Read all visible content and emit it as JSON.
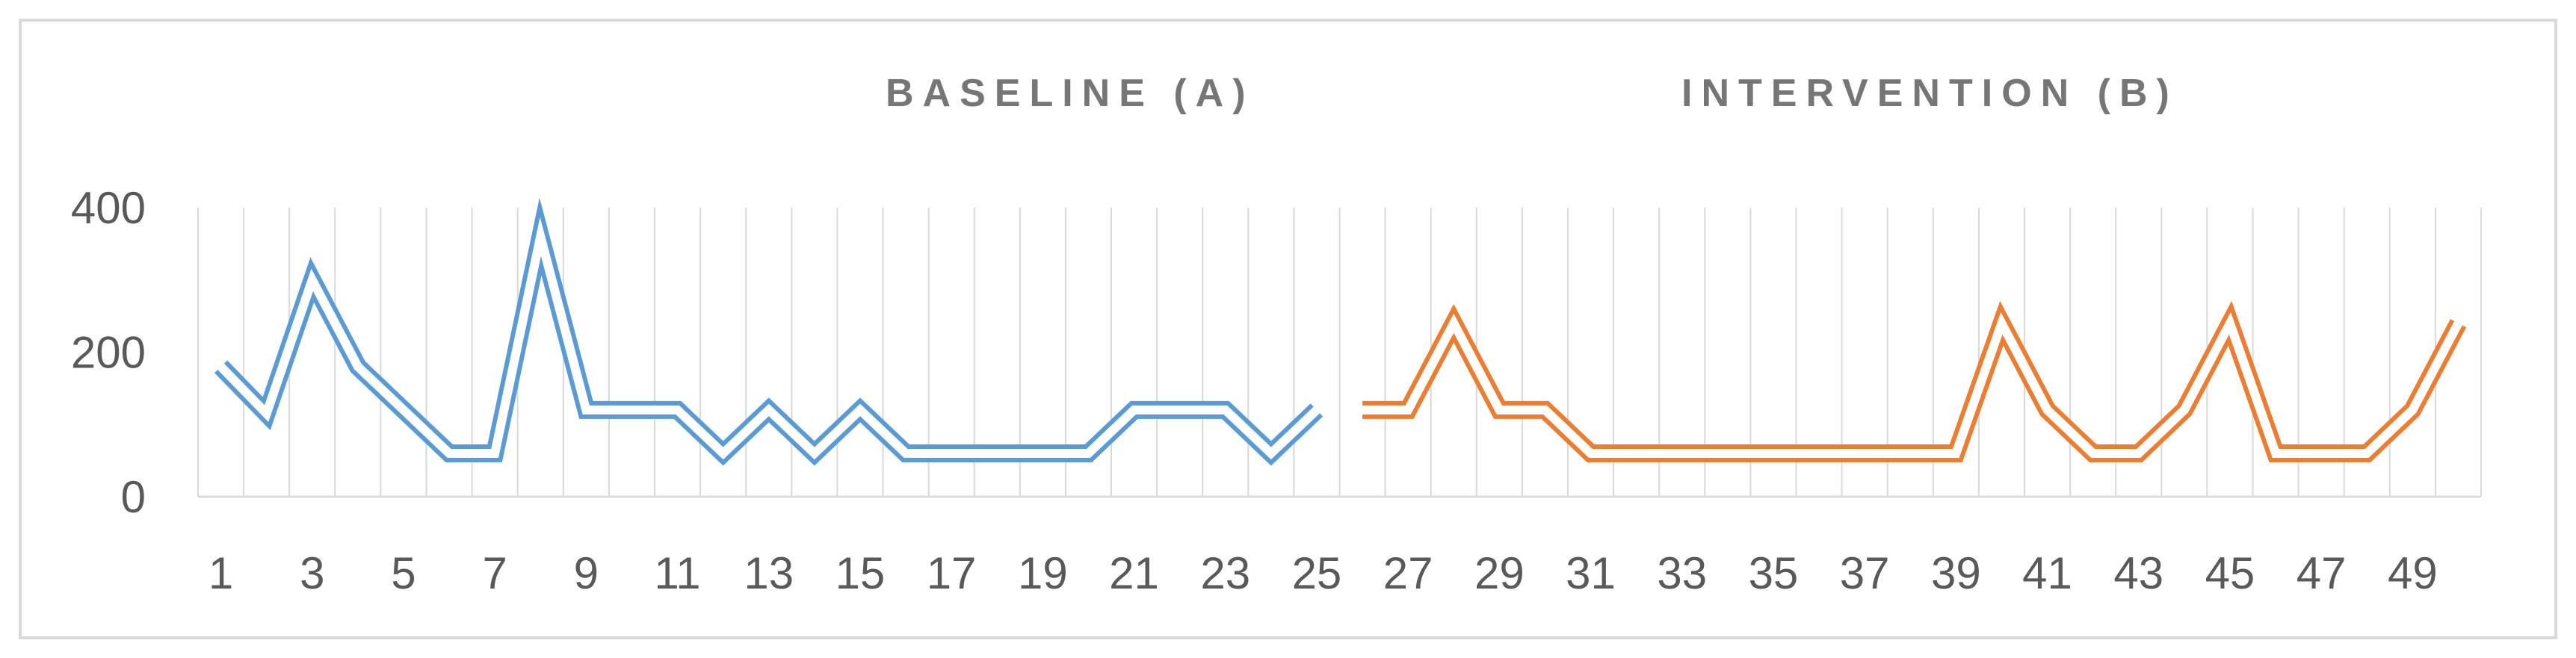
{
  "chart_data": {
    "type": "line",
    "line_style": "double",
    "phases": [
      {
        "label": "BASELINE (A)",
        "color": "#5b9bd5",
        "x": [
          1,
          2,
          3,
          4,
          5,
          6,
          7,
          8,
          9,
          10,
          11,
          12,
          13,
          14,
          15,
          16,
          17,
          18,
          19,
          20,
          21,
          22,
          23,
          24,
          25
        ],
        "values": [
          180,
          115,
          300,
          180,
          120,
          60,
          60,
          360,
          120,
          120,
          120,
          60,
          120,
          60,
          120,
          60,
          60,
          60,
          60,
          60,
          120,
          120,
          120,
          60,
          120
        ]
      },
      {
        "label": "INTERVENTION (B)",
        "color": "#ed7d31",
        "x": [
          26,
          27,
          28,
          29,
          30,
          31,
          32,
          33,
          34,
          35,
          36,
          37,
          38,
          39,
          40,
          41,
          42,
          43,
          44,
          45,
          46,
          47,
          48,
          49,
          50
        ],
        "values": [
          120,
          120,
          240,
          120,
          120,
          60,
          60,
          60,
          60,
          60,
          60,
          60,
          60,
          60,
          240,
          120,
          60,
          60,
          120,
          240,
          60,
          60,
          60,
          120,
          240
        ]
      }
    ],
    "x_range": [
      1,
      50
    ],
    "x_tick_labels": [
      "1",
      "3",
      "5",
      "7",
      "9",
      "11",
      "13",
      "15",
      "17",
      "19",
      "21",
      "23",
      "25",
      "27",
      "29",
      "31",
      "33",
      "35",
      "37",
      "39",
      "41",
      "43",
      "45",
      "47",
      "49"
    ],
    "ylim": [
      0,
      400
    ],
    "y_ticks": [
      0,
      200,
      400
    ],
    "y_tick_labels": [
      "0",
      "200",
      "400"
    ],
    "grid": "vertical",
    "grid_color": "#d9d9d9",
    "border_color": "#d9d9d9"
  }
}
